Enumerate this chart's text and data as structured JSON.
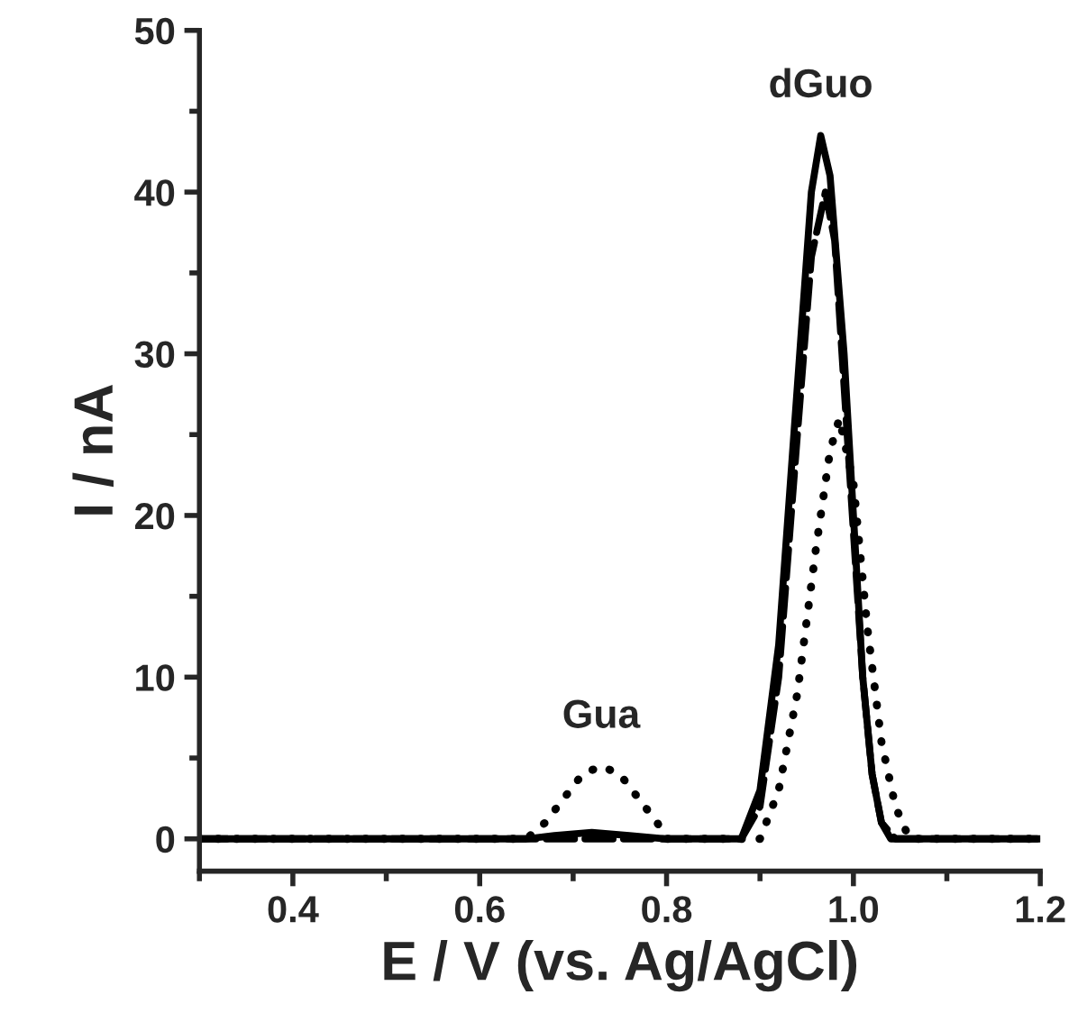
{
  "chart_data": {
    "type": "line",
    "xlabel": "E / V (vs. Ag/AgCl)",
    "ylabel": "I / nA",
    "xlim": [
      0.3,
      1.2
    ],
    "xticks": [
      0.4,
      0.6,
      0.8,
      {
        "value": 1.0,
        "label": "1.0"
      },
      1.2
    ],
    "ylim": [
      -2,
      50
    ],
    "yticks": [
      0,
      10,
      20,
      30,
      40,
      50
    ],
    "grid": false,
    "legend": false,
    "marker": "none",
    "series": [
      {
        "color": "#000000",
        "line_style": "solid",
        "x": [
          0.3,
          0.65,
          0.68,
          0.72,
          0.76,
          0.8,
          0.88,
          0.9,
          0.92,
          0.94,
          0.955,
          0.965,
          0.975,
          0.99,
          1.0,
          1.01,
          1.02,
          1.03,
          1.04,
          1.2
        ],
        "values": [
          0,
          0,
          0.2,
          0.4,
          0.2,
          0,
          0,
          3,
          12,
          28,
          40,
          43.5,
          41,
          30,
          20,
          10,
          4,
          1,
          0,
          0
        ]
      },
      {
        "color": "#000000",
        "line_style": "dashed",
        "x": [
          0.3,
          0.88,
          0.9,
          0.92,
          0.94,
          0.955,
          0.97,
          0.98,
          0.99,
          1.0,
          1.01,
          1.02,
          1.03,
          1.045,
          1.2
        ],
        "values": [
          0,
          0,
          2,
          10,
          25,
          36,
          40,
          37,
          28,
          19,
          10,
          4,
          1,
          0,
          0
        ]
      },
      {
        "color": "#000000",
        "line_style": "dotted",
        "x": [
          0.3,
          0.65,
          0.67,
          0.69,
          0.71,
          0.73,
          0.75,
          0.77,
          0.79,
          0.8,
          0.9,
          0.92,
          0.94,
          0.96,
          0.975,
          0.985,
          1.0,
          1.015,
          1.03,
          1.045,
          1.06,
          1.2
        ],
        "values": [
          0,
          0,
          1,
          2.5,
          4,
          4.5,
          4,
          2.5,
          1,
          0,
          0,
          3,
          9,
          18,
          24,
          26,
          22,
          13,
          6,
          2,
          0,
          0
        ]
      }
    ],
    "annotations": [
      "Gua",
      "dGuo"
    ]
  }
}
